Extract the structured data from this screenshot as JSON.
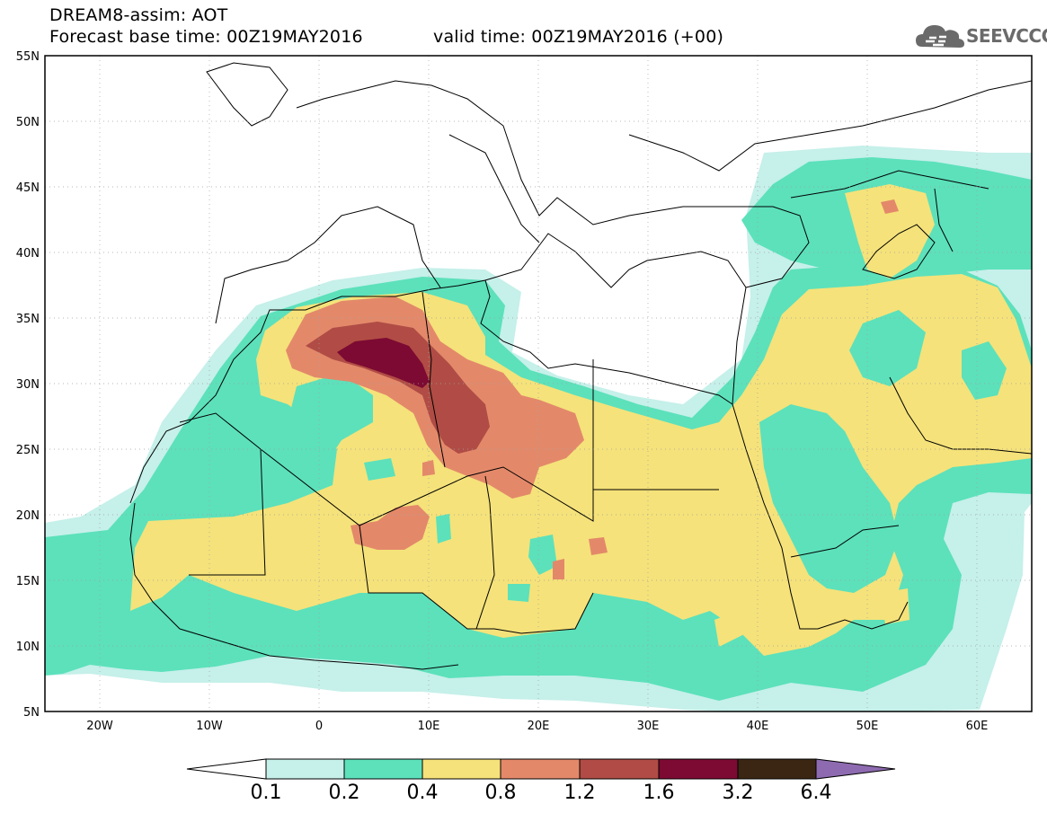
{
  "header": {
    "product": "DREAM8-assim: AOT",
    "base_time": "Forecast base time: 00Z19MAY2016",
    "valid_time": "valid time: 00Z19MAY2016 (+00)",
    "logo_text": "SEEVCCC"
  },
  "axes": {
    "lat_labels": [
      "55N",
      "50N",
      "45N",
      "40N",
      "35N",
      "30N",
      "25N",
      "20N",
      "15N",
      "10N",
      "5N"
    ],
    "lon_labels": [
      "20W",
      "10W",
      "0",
      "10E",
      "20E",
      "30E",
      "40E",
      "50E",
      "60E"
    ],
    "lat_range": [
      5,
      55
    ],
    "lon_range": [
      -25,
      65
    ]
  },
  "colorbar": {
    "labels": [
      "0.1",
      "0.2",
      "0.4",
      "0.8",
      "1.2",
      "1.6",
      "3.2",
      "6.4"
    ],
    "colors": [
      "#c6f0ea",
      "#5ce1bb",
      "#f5e27a",
      "#e3896a",
      "#b04c45",
      "#7d0a32",
      "#3a2613",
      "#8e6bb0"
    ],
    "under_color": "#ffffff"
  },
  "colors": {
    "c1": "#c6f0ea",
    "c2": "#5ce1bb",
    "c3": "#f5e27a",
    "c4": "#e3896a",
    "c5": "#b04c45",
    "c6": "#7d0a32"
  }
}
